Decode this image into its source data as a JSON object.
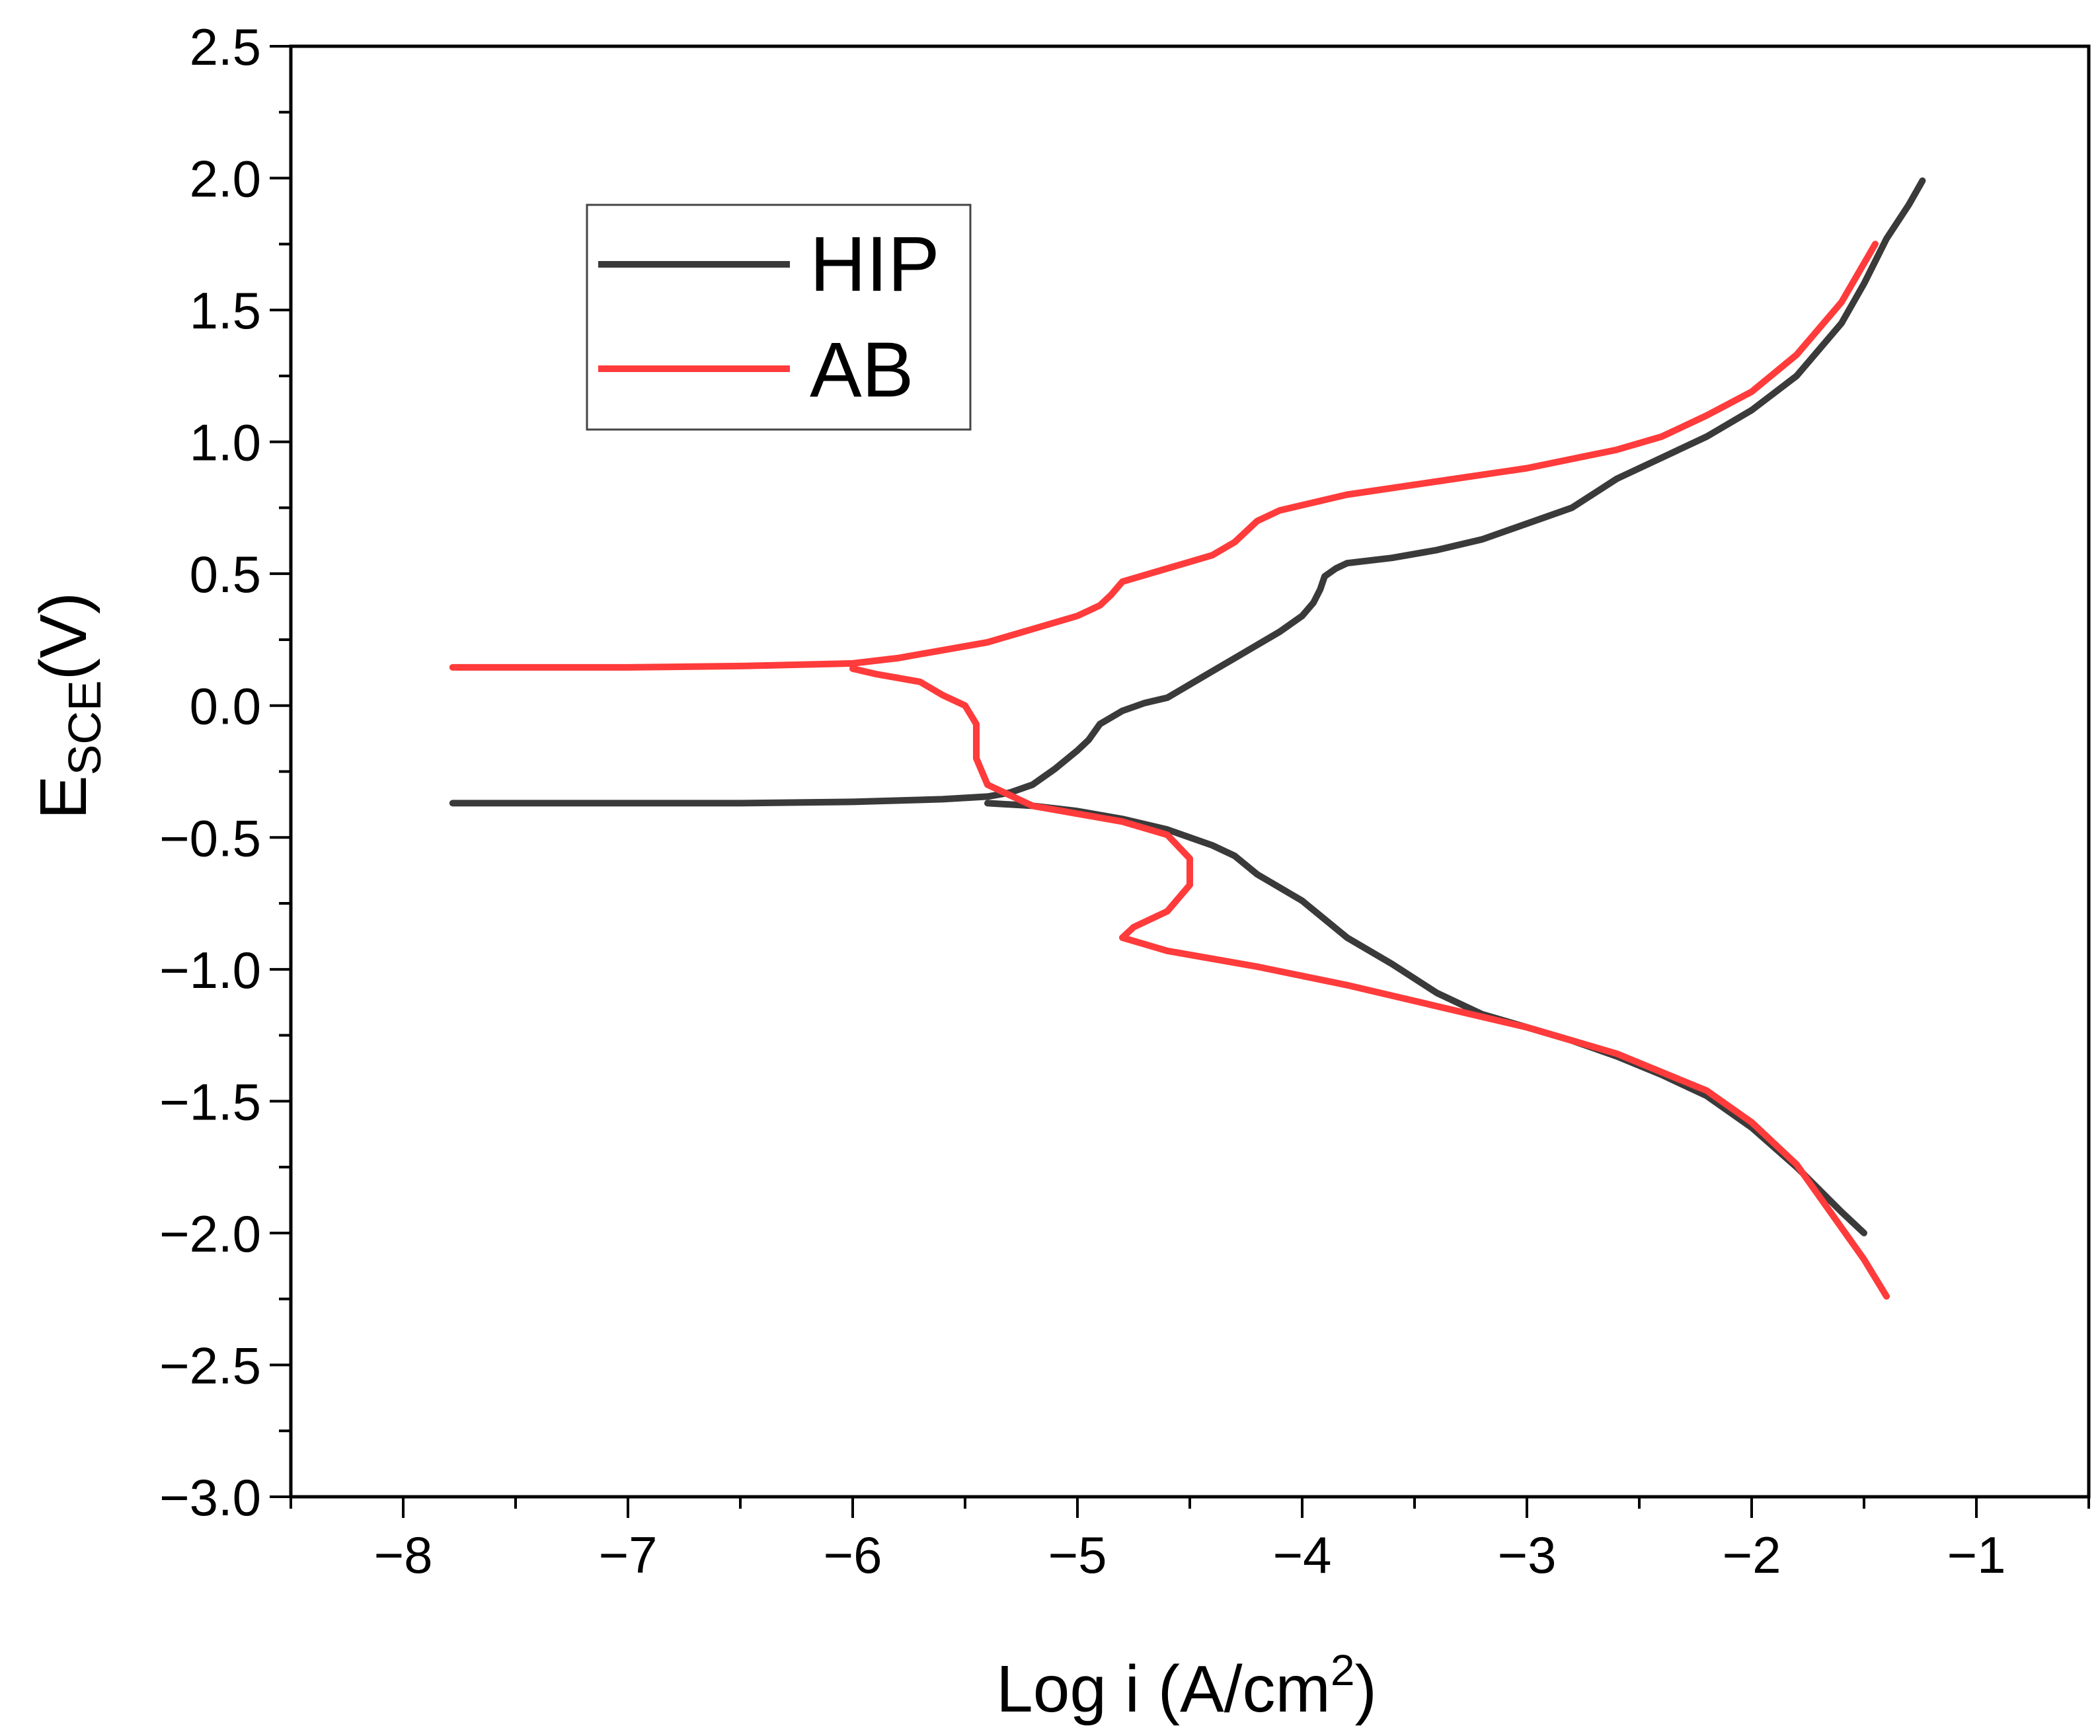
{
  "chart_data": {
    "type": "line",
    "xlabel": {
      "main": "Log i (A/cm",
      "sup": "2",
      "end": ")"
    },
    "ylabel": {
      "main": "E",
      "sub": "SCE",
      "end": "(V)"
    },
    "xlim": [
      -8.5,
      -0.5
    ],
    "ylim": [
      -3.0,
      2.5
    ],
    "x_ticks": [
      -8,
      -7,
      -6,
      -5,
      -4,
      -3,
      -2,
      -1
    ],
    "x_tick_labels": [
      "−8",
      "−7",
      "−6",
      "−5",
      "−4",
      "−3",
      "−2",
      "−1"
    ],
    "y_ticks": [
      2.5,
      2.0,
      1.5,
      1.0,
      0.5,
      0.0,
      -0.5,
      -1.0,
      -1.5,
      -2.0,
      -2.5,
      -3.0
    ],
    "y_tick_labels": [
      "2.5",
      "2.0",
      "1.5",
      "1.0",
      "0.5",
      "0.0",
      "−0.5",
      "−1.0",
      "−1.5",
      "−2.0",
      "−2.5",
      "−3.0"
    ],
    "grid": false,
    "legend_position": "top-left",
    "series": [
      {
        "name": "HIP",
        "color": "#3a3a3a",
        "points": [
          [
            -7.78,
            -0.37
          ],
          [
            -7.0,
            -0.37
          ],
          [
            -6.5,
            -0.37
          ],
          [
            -6.0,
            -0.365
          ],
          [
            -5.6,
            -0.355
          ],
          [
            -5.4,
            -0.345
          ],
          [
            -5.3,
            -0.33
          ],
          [
            -5.2,
            -0.3
          ],
          [
            -5.1,
            -0.24
          ],
          [
            -5.0,
            -0.17
          ],
          [
            -4.95,
            -0.13
          ],
          [
            -4.9,
            -0.07
          ],
          [
            -4.8,
            -0.02
          ],
          [
            -4.7,
            0.01
          ],
          [
            -4.6,
            0.03
          ],
          [
            -4.5,
            0.08
          ],
          [
            -4.4,
            0.13
          ],
          [
            -4.3,
            0.18
          ],
          [
            -4.2,
            0.23
          ],
          [
            -4.1,
            0.28
          ],
          [
            -4.0,
            0.34
          ],
          [
            -3.95,
            0.39
          ],
          [
            -3.92,
            0.44
          ],
          [
            -3.9,
            0.49
          ],
          [
            -3.85,
            0.52
          ],
          [
            -3.8,
            0.54
          ],
          [
            -3.6,
            0.56
          ],
          [
            -3.4,
            0.59
          ],
          [
            -3.2,
            0.63
          ],
          [
            -3.0,
            0.69
          ],
          [
            -2.8,
            0.75
          ],
          [
            -2.6,
            0.86
          ],
          [
            -2.4,
            0.94
          ],
          [
            -2.2,
            1.02
          ],
          [
            -2.0,
            1.12
          ],
          [
            -1.8,
            1.25
          ],
          [
            -1.6,
            1.45
          ],
          [
            -1.5,
            1.6
          ],
          [
            -1.4,
            1.77
          ],
          [
            -1.3,
            1.9
          ],
          [
            -1.24,
            1.99
          ]
        ],
        "points_cathodic": [
          [
            -5.4,
            -0.37
          ],
          [
            -5.2,
            -0.38
          ],
          [
            -5.0,
            -0.4
          ],
          [
            -4.8,
            -0.43
          ],
          [
            -4.6,
            -0.47
          ],
          [
            -4.4,
            -0.53
          ],
          [
            -4.3,
            -0.57
          ],
          [
            -4.2,
            -0.64
          ],
          [
            -4.0,
            -0.74
          ],
          [
            -3.8,
            -0.88
          ],
          [
            -3.6,
            -0.98
          ],
          [
            -3.4,
            -1.09
          ],
          [
            -3.2,
            -1.17
          ],
          [
            -3.0,
            -1.22
          ],
          [
            -2.8,
            -1.27
          ],
          [
            -2.6,
            -1.33
          ],
          [
            -2.4,
            -1.4
          ],
          [
            -2.2,
            -1.48
          ],
          [
            -2.0,
            -1.6
          ],
          [
            -1.8,
            -1.75
          ],
          [
            -1.6,
            -1.92
          ],
          [
            -1.5,
            -2.0
          ]
        ]
      },
      {
        "name": "AB",
        "color": "#ff3b3b",
        "points": [
          [
            -7.78,
            0.145
          ],
          [
            -7.0,
            0.145
          ],
          [
            -6.5,
            0.15
          ],
          [
            -6.0,
            0.16
          ],
          [
            -5.8,
            0.18
          ],
          [
            -5.6,
            0.21
          ],
          [
            -5.4,
            0.24
          ],
          [
            -5.2,
            0.29
          ],
          [
            -5.0,
            0.34
          ],
          [
            -4.9,
            0.38
          ],
          [
            -4.85,
            0.42
          ],
          [
            -4.8,
            0.47
          ],
          [
            -4.6,
            0.52
          ],
          [
            -4.4,
            0.57
          ],
          [
            -4.3,
            0.62
          ],
          [
            -4.2,
            0.7
          ],
          [
            -4.1,
            0.74
          ],
          [
            -3.8,
            0.8
          ],
          [
            -3.4,
            0.85
          ],
          [
            -3.0,
            0.9
          ],
          [
            -2.6,
            0.97
          ],
          [
            -2.4,
            1.02
          ],
          [
            -2.2,
            1.1
          ],
          [
            -2.0,
            1.19
          ],
          [
            -1.8,
            1.33
          ],
          [
            -1.6,
            1.53
          ],
          [
            -1.45,
            1.75
          ]
        ],
        "points_cathodic": [
          [
            -6.0,
            0.14
          ],
          [
            -5.9,
            0.12
          ],
          [
            -5.7,
            0.09
          ],
          [
            -5.6,
            0.04
          ],
          [
            -5.5,
            0.0
          ],
          [
            -5.45,
            -0.07
          ],
          [
            -5.45,
            -0.2
          ],
          [
            -5.4,
            -0.3
          ],
          [
            -5.2,
            -0.38
          ],
          [
            -5.0,
            -0.41
          ],
          [
            -4.8,
            -0.44
          ],
          [
            -4.6,
            -0.49
          ],
          [
            -4.5,
            -0.58
          ],
          [
            -4.5,
            -0.68
          ],
          [
            -4.6,
            -0.78
          ],
          [
            -4.75,
            -0.84
          ],
          [
            -4.8,
            -0.88
          ],
          [
            -4.6,
            -0.93
          ],
          [
            -4.2,
            -0.99
          ],
          [
            -3.8,
            -1.06
          ],
          [
            -3.4,
            -1.14
          ],
          [
            -3.0,
            -1.22
          ],
          [
            -2.6,
            -1.32
          ],
          [
            -2.2,
            -1.46
          ],
          [
            -2.0,
            -1.58
          ],
          [
            -1.8,
            -1.74
          ],
          [
            -1.6,
            -1.98
          ],
          [
            -1.5,
            -2.1
          ],
          [
            -1.4,
            -2.24
          ]
        ]
      }
    ]
  }
}
